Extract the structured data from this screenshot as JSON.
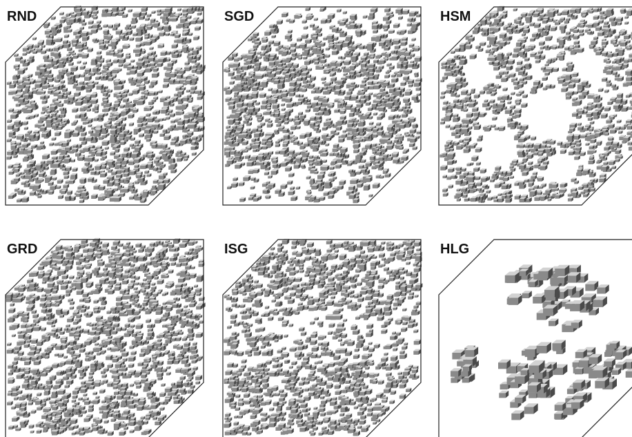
{
  "figure": {
    "colors": {
      "cube_top": "#d2d2d2",
      "cube_front": "#8a8a8a",
      "cube_side": "#4a4a4a",
      "outline": "#222222"
    },
    "panels": [
      {
        "label": "RND",
        "structure": "dense-uniform",
        "cube_count": 1500,
        "seed": 11
      },
      {
        "label": "SGD",
        "structure": "dense-band",
        "cube_count": 1450,
        "seed": 23
      },
      {
        "label": "HSM",
        "structure": "porous-with-voids",
        "cube_count": 1100,
        "seed": 37
      },
      {
        "label": "GRD",
        "structure": "dense-uniform",
        "cube_count": 1500,
        "seed": 41
      },
      {
        "label": "ISG",
        "structure": "dense-with-sparse-middle",
        "cube_count": 1350,
        "seed": 53
      },
      {
        "label": "HLG",
        "structure": "large-clusters",
        "cube_count": 170,
        "seed": 67
      }
    ]
  }
}
